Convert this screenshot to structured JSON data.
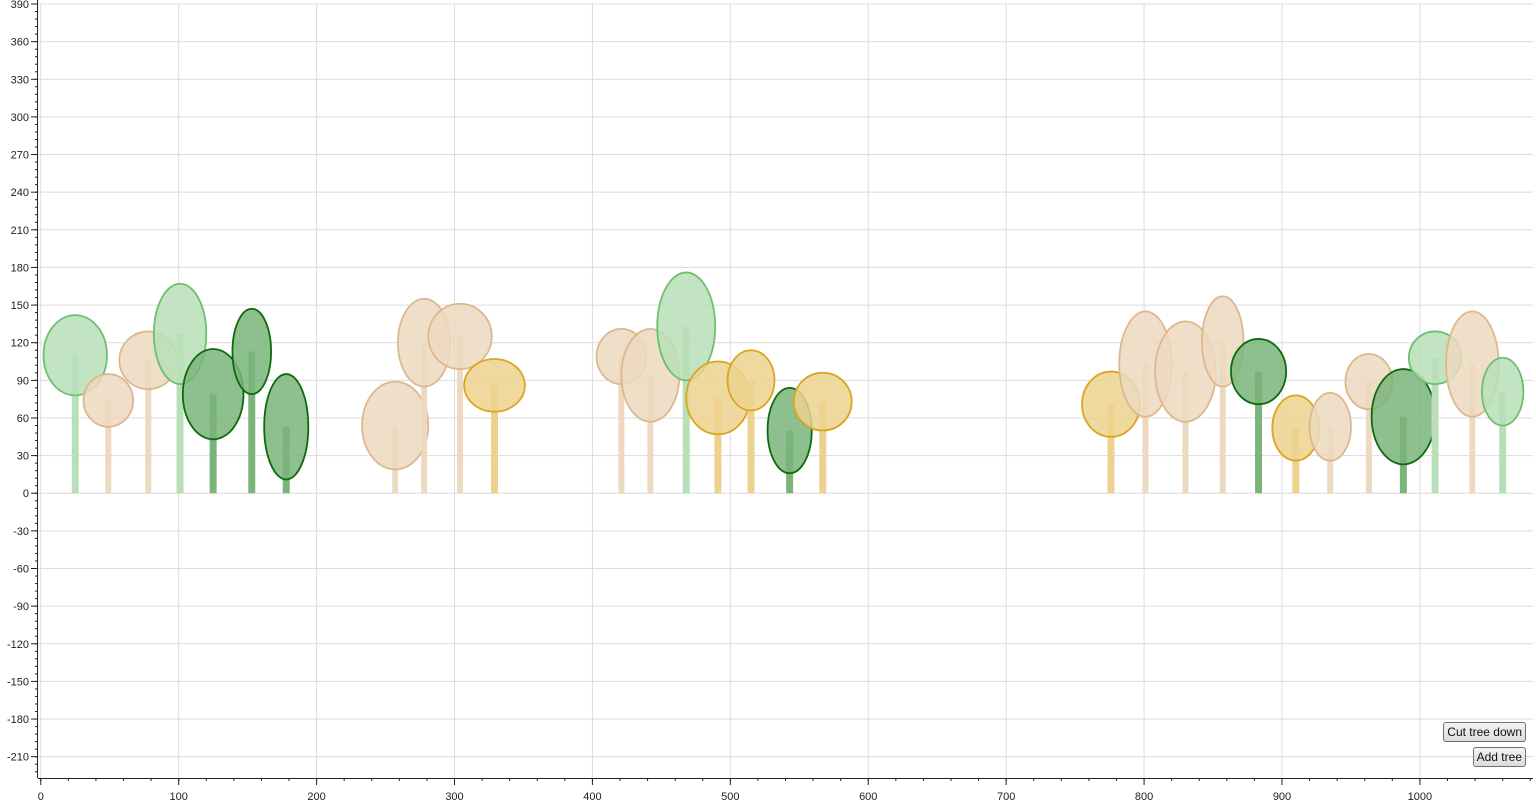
{
  "buttons": {
    "cut_label": "Cut tree down",
    "add_label": "Add tree"
  },
  "colors": {
    "tan": {
      "fill": "#ecd9c0",
      "stroke": "#ddb88f",
      "trunk": "#ecd9c0"
    },
    "light": {
      "fill": "#b8dfb8",
      "stroke": "#6ebf6e",
      "trunk": "#b8dfb8"
    },
    "dark": {
      "fill": "#7ab47a",
      "stroke": "#0d6b0d",
      "trunk": "#7ab47a"
    },
    "gold": {
      "fill": "#edd28e",
      "stroke": "#daa520",
      "trunk": "#edd28e"
    }
  },
  "chart_data": {
    "type": "scatter",
    "xlim": [
      -2,
      1082
    ],
    "ylim": [
      -227,
      390
    ],
    "x_ticks": [
      "0",
      "100",
      "200",
      "300",
      "400",
      "500",
      "600",
      "700",
      "800",
      "900",
      "1000"
    ],
    "y_ticks": [
      "390",
      "360",
      "330",
      "300",
      "270",
      "240",
      "210",
      "180",
      "150",
      "120",
      "90",
      "60",
      "30",
      "0",
      "-30",
      "-60",
      "-90",
      "-120",
      "-150",
      "-180",
      "-210"
    ],
    "grid": true,
    "trees": [
      {
        "x": 25,
        "cy": 110,
        "rx": 23,
        "ry": 32,
        "color": "light"
      },
      {
        "x": 49,
        "cy": 74,
        "rx": 18,
        "ry": 21,
        "color": "tan"
      },
      {
        "x": 78,
        "cy": 106,
        "rx": 21,
        "ry": 23,
        "color": "tan"
      },
      {
        "x": 101,
        "cy": 127,
        "rx": 19,
        "ry": 40,
        "color": "light"
      },
      {
        "x": 125,
        "cy": 79,
        "rx": 22,
        "ry": 36,
        "color": "dark"
      },
      {
        "x": 153,
        "cy": 113,
        "rx": 14,
        "ry": 34,
        "color": "dark"
      },
      {
        "x": 178,
        "cy": 53,
        "rx": 16,
        "ry": 42,
        "color": "dark"
      },
      {
        "x": 257,
        "cy": 54,
        "rx": 24,
        "ry": 35,
        "color": "tan"
      },
      {
        "x": 278,
        "cy": 120,
        "rx": 19,
        "ry": 35,
        "color": "tan"
      },
      {
        "x": 304,
        "cy": 125,
        "rx": 23,
        "ry": 26,
        "color": "tan"
      },
      {
        "x": 329,
        "cy": 86,
        "rx": 22,
        "ry": 21,
        "color": "gold"
      },
      {
        "x": 421,
        "cy": 109,
        "rx": 18,
        "ry": 22,
        "color": "tan"
      },
      {
        "x": 442,
        "cy": 94,
        "rx": 21,
        "ry": 37,
        "color": "tan"
      },
      {
        "x": 468,
        "cy": 133,
        "rx": 21,
        "ry": 43,
        "color": "light"
      },
      {
        "x": 491,
        "cy": 76,
        "rx": 23,
        "ry": 29,
        "color": "gold"
      },
      {
        "x": 515,
        "cy": 90,
        "rx": 17,
        "ry": 24,
        "color": "gold"
      },
      {
        "x": 543,
        "cy": 50,
        "rx": 16,
        "ry": 34,
        "color": "dark"
      },
      {
        "x": 567,
        "cy": 73,
        "rx": 21,
        "ry": 23,
        "color": "gold"
      },
      {
        "x": 776,
        "cy": 71,
        "rx": 21,
        "ry": 26,
        "color": "gold"
      },
      {
        "x": 801,
        "cy": 103,
        "rx": 19,
        "ry": 42,
        "color": "tan"
      },
      {
        "x": 830,
        "cy": 97,
        "rx": 22,
        "ry": 40,
        "color": "tan"
      },
      {
        "x": 857,
        "cy": 121,
        "rx": 15,
        "ry": 36,
        "color": "tan"
      },
      {
        "x": 883,
        "cy": 97,
        "rx": 20,
        "ry": 26,
        "color": "dark"
      },
      {
        "x": 910,
        "cy": 52,
        "rx": 17,
        "ry": 26,
        "color": "gold"
      },
      {
        "x": 935,
        "cy": 53,
        "rx": 15,
        "ry": 27,
        "color": "tan"
      },
      {
        "x": 963,
        "cy": 89,
        "rx": 17,
        "ry": 22,
        "color": "tan"
      },
      {
        "x": 988,
        "cy": 61,
        "rx": 23,
        "ry": 38,
        "color": "dark"
      },
      {
        "x": 1011,
        "cy": 108,
        "rx": 19,
        "ry": 21,
        "color": "light"
      },
      {
        "x": 1038,
        "cy": 103,
        "rx": 19,
        "ry": 42,
        "color": "tan"
      },
      {
        "x": 1060,
        "cy": 81,
        "rx": 15,
        "ry": 27,
        "color": "light"
      }
    ]
  }
}
